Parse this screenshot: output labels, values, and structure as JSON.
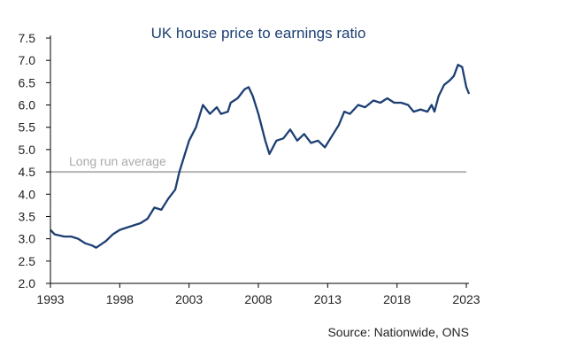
{
  "chart_data": {
    "type": "line",
    "title": "UK house price to earnings ratio",
    "source": "Source: Nationwide, ONS",
    "xlabel": "",
    "ylabel": "",
    "xlim": [
      1993,
      2023
    ],
    "ylim": [
      2.0,
      7.5
    ],
    "x_ticks": [
      "1993",
      "1998",
      "2003",
      "2008",
      "2013",
      "2018",
      "2023"
    ],
    "y_ticks": [
      "2.0",
      "2.5",
      "3.0",
      "3.5",
      "4.0",
      "4.5",
      "5.0",
      "5.5",
      "6.0",
      "6.5",
      "7.0",
      "7.5"
    ],
    "reference_line": {
      "label": "Long run average",
      "value": 4.5
    },
    "line_color": "#1d3f73",
    "series": [
      {
        "name": "House price to earnings ratio",
        "x": [
          1993.0,
          1993.3,
          1994,
          1994.5,
          1995,
          1995.5,
          1996,
          1996.3,
          1997,
          1997.5,
          1998,
          1998.5,
          1999,
          1999.5,
          2000,
          2000.5,
          2001,
          2001.5,
          2002,
          2002.3,
          2002.7,
          2003,
          2003.5,
          2004,
          2004.5,
          2005,
          2005.3,
          2005.8,
          2006,
          2006.5,
          2007,
          2007.3,
          2007.6,
          2008,
          2008.5,
          2008.8,
          2009.3,
          2009.8,
          2010.3,
          2010.8,
          2011.3,
          2011.8,
          2012.3,
          2012.8,
          2013.3,
          2013.8,
          2014.2,
          2014.6,
          2015.2,
          2015.7,
          2016.3,
          2016.8,
          2017.3,
          2017.8,
          2018.3,
          2018.8,
          2019.2,
          2019.7,
          2020.2,
          2020.5,
          2020.7,
          2021,
          2021.4,
          2021.8,
          2022.1,
          2022.4,
          2022.7,
          2023.0,
          2023.2
        ],
        "y": [
          3.2,
          3.1,
          3.05,
          3.05,
          3.0,
          2.9,
          2.85,
          2.8,
          2.95,
          3.1,
          3.2,
          3.25,
          3.3,
          3.35,
          3.45,
          3.7,
          3.65,
          3.9,
          4.1,
          4.5,
          4.9,
          5.2,
          5.5,
          6.0,
          5.8,
          5.95,
          5.8,
          5.85,
          6.05,
          6.15,
          6.35,
          6.4,
          6.2,
          5.8,
          5.2,
          4.9,
          5.2,
          5.25,
          5.45,
          5.2,
          5.35,
          5.15,
          5.2,
          5.05,
          5.3,
          5.55,
          5.85,
          5.8,
          6.0,
          5.95,
          6.1,
          6.05,
          6.15,
          6.05,
          6.05,
          6.0,
          5.85,
          5.9,
          5.85,
          6.0,
          5.85,
          6.2,
          6.45,
          6.55,
          6.65,
          6.9,
          6.85,
          6.4,
          6.25
        ]
      }
    ]
  }
}
